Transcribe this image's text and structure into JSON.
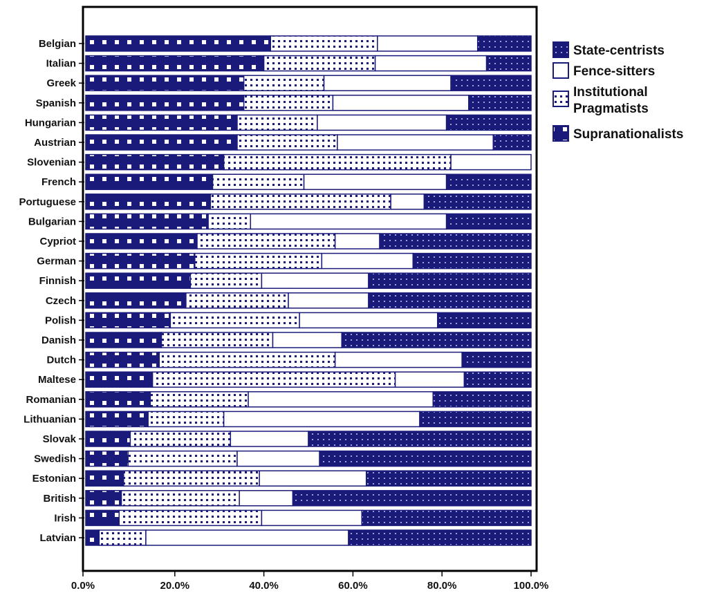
{
  "chart_data": {
    "type": "bar",
    "orientation": "horizontal",
    "stacked": "percent",
    "title": "",
    "xlabel": "",
    "ylabel": "",
    "xlim": [
      0,
      100
    ],
    "x_ticks": [
      "0.0%",
      "20.0%",
      "40.0%",
      "60.0%",
      "80.0%",
      "100.0%"
    ],
    "grid": false,
    "legend_position": "right",
    "categories": [
      "Belgian",
      "Italian",
      "Greek",
      "Spanish",
      "Hungarian",
      "Austrian",
      "Slovenian",
      "French",
      "Portuguese",
      "Bulgarian",
      "Cypriot",
      "German",
      "Finnish",
      "Czech",
      "Polish",
      "Danish",
      "Dutch",
      "Maltese",
      "Romanian",
      "Lithuanian",
      "Slovak",
      "Swedish",
      "Estonian",
      "British",
      "Irish",
      "Latvian"
    ],
    "series": [
      {
        "name": "Supranationalists",
        "color": "#1a1a7a",
        "pattern": "large-dots",
        "values": [
          41.5,
          40,
          35.5,
          35.5,
          34,
          34,
          31,
          28.5,
          28,
          27.5,
          25,
          24.5,
          23.5,
          22.5,
          19,
          17,
          16.5,
          15,
          14.5,
          14,
          10,
          9.5,
          8.5,
          8,
          7.5,
          3
        ]
      },
      {
        "name": "Institutional Pragmatists",
        "color": "#1a1a7a",
        "pattern": "small-dots",
        "values": [
          24,
          25,
          18,
          20,
          18,
          22.5,
          51,
          20.5,
          40.5,
          9.5,
          31,
          28.5,
          16,
          23,
          29,
          25,
          39.5,
          54.5,
          22,
          17,
          22.5,
          24.5,
          30.5,
          26.5,
          32,
          10.5
        ]
      },
      {
        "name": "Fence-sitters",
        "color": "#ffffff",
        "pattern": "none",
        "values": [
          22.5,
          25,
          28.5,
          30.5,
          29,
          35,
          18,
          32,
          7.5,
          44,
          10,
          20.5,
          24,
          18,
          31,
          15.5,
          28.5,
          15.5,
          41.5,
          44,
          17.5,
          18.5,
          24,
          12,
          22.5,
          45.5
        ]
      },
      {
        "name": "State-centrists",
        "color": "#1a1a7a",
        "pattern": "fine-grid",
        "values": [
          12,
          10,
          18,
          14,
          19,
          8.5,
          0,
          19,
          24,
          19,
          34,
          26.5,
          36.5,
          36.5,
          21,
          42.5,
          15.5,
          15,
          22,
          25,
          50,
          47.5,
          37,
          53.5,
          38,
          41
        ]
      }
    ],
    "legend": [
      {
        "series_index": 3,
        "label": "State-centrists"
      },
      {
        "series_index": 2,
        "label": "Fence-sitters"
      },
      {
        "series_index": 1,
        "label_lines": [
          "Institutional",
          "Pragmatists"
        ]
      },
      {
        "series_index": 0,
        "label": "Supranationalists"
      }
    ]
  }
}
